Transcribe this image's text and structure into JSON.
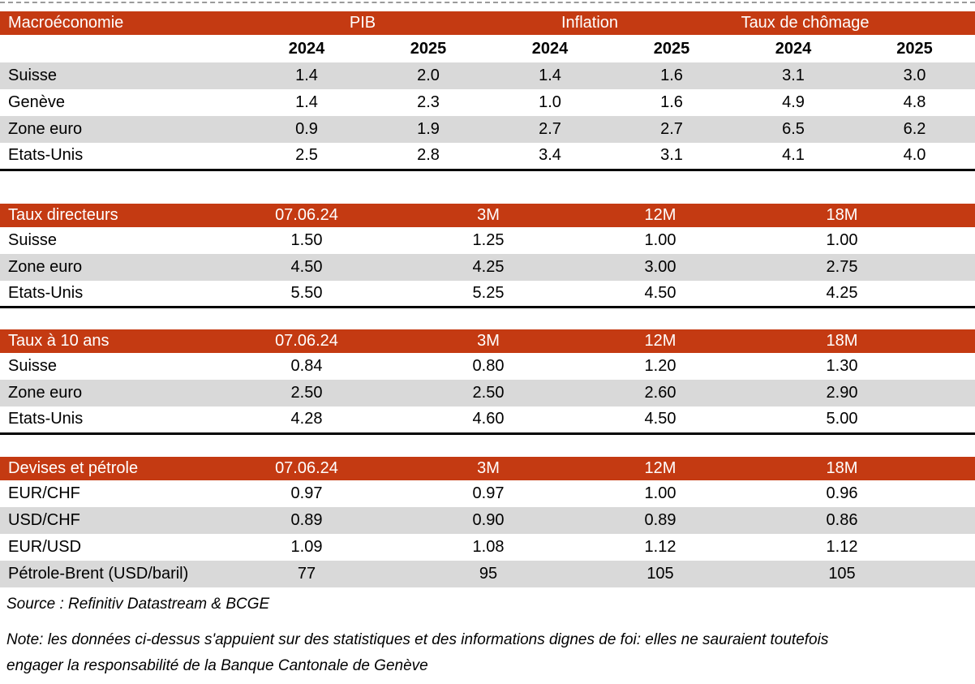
{
  "colors": {
    "accent_red": "#C43A12",
    "alt_row_gray": "#D9D9D9",
    "header_text": "#FFFFFF",
    "bottom_border": "#000000"
  },
  "tables": {
    "macro": {
      "title": "Macroéconomie",
      "group_headers": [
        "PIB",
        "Inflation",
        "Taux de chômage"
      ],
      "year_headers": [
        "2024",
        "2025",
        "2024",
        "2025",
        "2024",
        "2025"
      ],
      "rows": [
        {
          "label": "Suisse",
          "values": [
            "1.4",
            "2.0",
            "1.4",
            "1.6",
            "3.1",
            "3.0"
          ]
        },
        {
          "label": "Genève",
          "values": [
            "1.4",
            "2.3",
            "1.0",
            "1.6",
            "4.9",
            "4.8"
          ]
        },
        {
          "label": "Zone euro",
          "values": [
            "0.9",
            "1.9",
            "2.7",
            "2.7",
            "6.5",
            "6.2"
          ]
        },
        {
          "label": "Etats-Unis",
          "values": [
            "2.5",
            "2.8",
            "3.4",
            "3.1",
            "4.1",
            "4.0"
          ]
        }
      ]
    },
    "directeurs": {
      "title": "Taux directeurs",
      "col_headers": [
        "07.06.24",
        "3M",
        "12M",
        "18M"
      ],
      "rows": [
        {
          "label": "Suisse",
          "values": [
            "1.50",
            "1.25",
            "1.00",
            "1.00"
          ]
        },
        {
          "label": "Zone euro",
          "values": [
            "4.50",
            "4.25",
            "3.00",
            "2.75"
          ]
        },
        {
          "label": "Etats-Unis",
          "values": [
            "5.50",
            "5.25",
            "4.50",
            "4.25"
          ]
        }
      ]
    },
    "dix_ans": {
      "title": "Taux à 10 ans",
      "col_headers": [
        "07.06.24",
        "3M",
        "12M",
        "18M"
      ],
      "rows": [
        {
          "label": "Suisse",
          "values": [
            "0.84",
            "0.80",
            "1.20",
            "1.30"
          ]
        },
        {
          "label": "Zone euro",
          "values": [
            "2.50",
            "2.50",
            "2.60",
            "2.90"
          ]
        },
        {
          "label": "Etats-Unis",
          "values": [
            "4.28",
            "4.60",
            "4.50",
            "5.00"
          ]
        }
      ]
    },
    "devises": {
      "title": "Devises et pétrole",
      "col_headers": [
        "07.06.24",
        "3M",
        "12M",
        "18M"
      ],
      "rows": [
        {
          "label": "EUR/CHF",
          "values": [
            "0.97",
            "0.97",
            "1.00",
            "0.96"
          ]
        },
        {
          "label": "USD/CHF",
          "values": [
            "0.89",
            "0.90",
            "0.89",
            "0.86"
          ]
        },
        {
          "label": "EUR/USD",
          "values": [
            "1.09",
            "1.08",
            "1.12",
            "1.12"
          ]
        },
        {
          "label": "Pétrole-Brent (USD/baril)",
          "values": [
            "77",
            "95",
            "105",
            "105"
          ]
        }
      ]
    }
  },
  "footer": {
    "source": "Source : Refinitiv Datastream & BCGE",
    "note_lines": [
      "Note: les données ci-dessus s'appuient sur des statistiques et des informations dignes de foi: elles ne sauraient toutefois",
      "engager la responsabilité de la Banque Cantonale de Genève"
    ]
  }
}
